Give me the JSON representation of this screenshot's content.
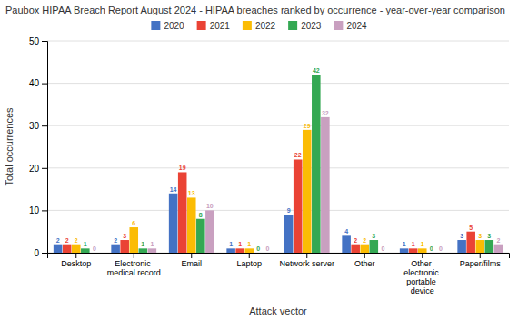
{
  "chart_data": {
    "type": "bar",
    "title": "Paubox HIPAA Breach Report August 2024 - HIPAA breaches ranked by occurrence - year-over-year comparison",
    "xlabel": "Attack vector",
    "ylabel": "Total occurrences",
    "categories": [
      "Desktop",
      "Electronic medical record",
      "Email",
      "Laptop",
      "Network server",
      "Other",
      "Other electronic portable device",
      "Paper/films"
    ],
    "series": [
      {
        "name": "2020",
        "color": "#4472C4",
        "values": [
          2,
          2,
          14,
          1,
          9,
          4,
          1,
          3
        ]
      },
      {
        "name": "2021",
        "color": "#EA4335",
        "values": [
          2,
          3,
          19,
          1,
          22,
          2,
          1,
          5
        ]
      },
      {
        "name": "2022",
        "color": "#FBBC04",
        "values": [
          2,
          6,
          13,
          1,
          29,
          2,
          1,
          3
        ]
      },
      {
        "name": "2023",
        "color": "#34A853",
        "values": [
          1,
          1,
          8,
          0,
          42,
          3,
          0,
          3
        ]
      },
      {
        "name": "2024",
        "color": "#C9A0C0",
        "values": [
          0,
          1,
          10,
          0,
          32,
          0,
          0,
          2
        ]
      }
    ],
    "ylim": [
      0,
      50
    ],
    "yticks": [
      0,
      10,
      20,
      30,
      40,
      50
    ],
    "grid": true,
    "legend": "top",
    "data_labels": true
  }
}
